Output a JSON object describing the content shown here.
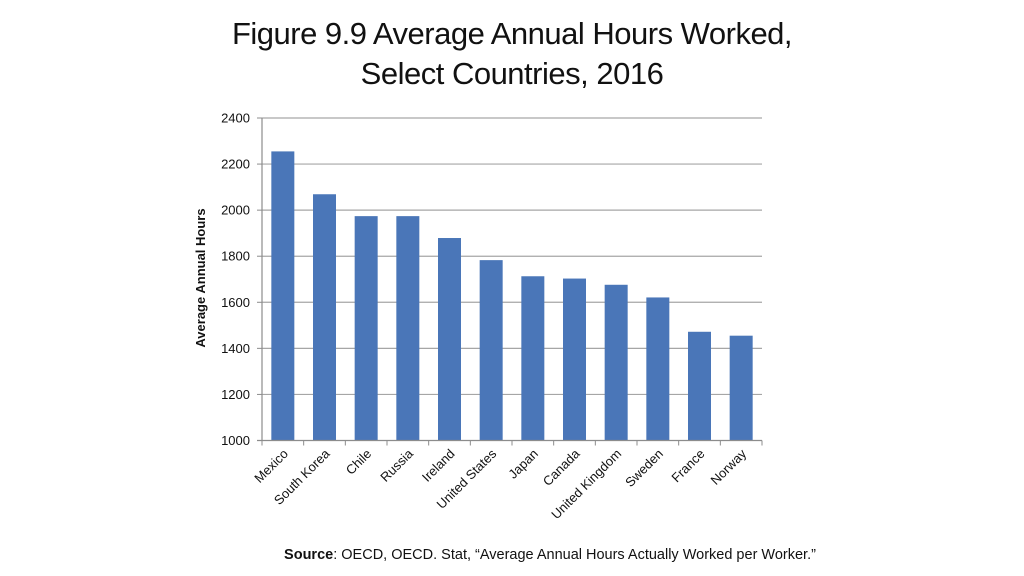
{
  "title_line1": "Figure 9.9 Average Annual Hours Worked,",
  "title_line2": "Select Countries, 2016",
  "source": {
    "label": "Source",
    "text": ": OECD, OECD. Stat, “Average Annual Hours Actually Worked per Worker.”"
  },
  "colors": {
    "bar": "#4a76b8",
    "grid": "#a6a6a6",
    "axis": "#8c8c8c"
  },
  "chart_data": {
    "type": "bar",
    "title": "Figure 9.9 Average Annual Hours Worked, Select Countries, 2016",
    "xlabel": "",
    "ylabel": "Average Annual Hours",
    "categories": [
      "Mexico",
      "South Korea",
      "Chile",
      "Russia",
      "Ireland",
      "United States",
      "Japan",
      "Canada",
      "United Kingdom",
      "Sweden",
      "France",
      "Norway"
    ],
    "values": [
      2255,
      2069,
      1974,
      1974,
      1879,
      1783,
      1713,
      1703,
      1676,
      1621,
      1472,
      1455
    ],
    "ylim": [
      1000,
      2400
    ],
    "yticks": [
      1000,
      1200,
      1400,
      1600,
      1800,
      2000,
      2200,
      2400
    ],
    "grid": true,
    "legend": null
  }
}
